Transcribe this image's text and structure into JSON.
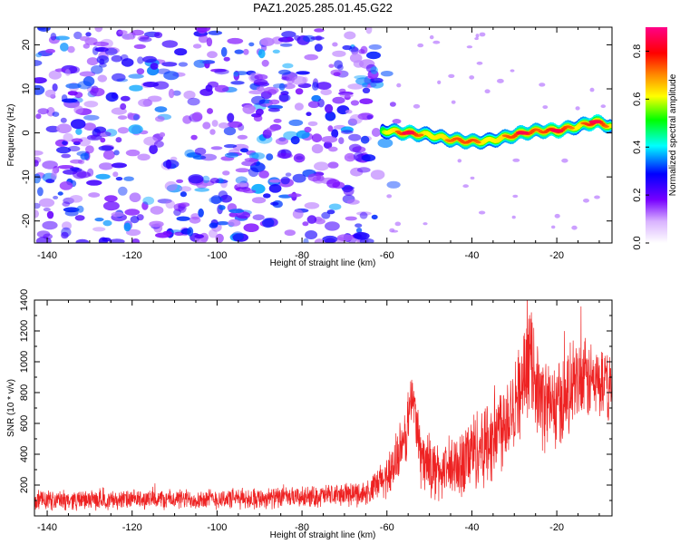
{
  "figure_title": "PAZ1.2025.285.01.45.G22",
  "chart_data": [
    {
      "type": "heatmap",
      "title": "PAZ1.2025.285.01.45.G22",
      "xlabel": "Height of straight line (km)",
      "ylabel": "Frequency (Hz)",
      "xlim": [
        -143,
        -7
      ],
      "ylim": [
        -25,
        24
      ],
      "xticks": [
        -140,
        -120,
        -100,
        -80,
        -60,
        -40,
        -20
      ],
      "yticks": [
        -20,
        -10,
        0,
        10,
        20
      ],
      "xtick_labels": [
        "-140",
        "-120",
        "-100",
        "-80",
        "-60",
        "-40",
        "-20"
      ],
      "ytick_labels": [
        "-20",
        "-10",
        "0",
        "10",
        "20"
      ],
      "noise_region": {
        "x_range": [
          -143,
          -62
        ],
        "freq_range": [
          -25,
          24
        ],
        "normalized_amplitude": [
          0.05,
          0.3
        ]
      },
      "signal_ridge": {
        "description": "dominant spectral line",
        "points": [
          {
            "x": -61,
            "freq": 0.5,
            "amp": 0.5
          },
          {
            "x": -55,
            "freq": 0.0,
            "amp": 0.85
          },
          {
            "x": -50,
            "freq": -0.5,
            "amp": 0.6
          },
          {
            "x": -45,
            "freq": -1.5,
            "amp": 0.7
          },
          {
            "x": -40,
            "freq": -2.0,
            "amp": 0.75
          },
          {
            "x": -36,
            "freq": -1.8,
            "amp": 0.6
          },
          {
            "x": -32,
            "freq": -1.0,
            "amp": 0.7
          },
          {
            "x": -28,
            "freq": 0.0,
            "amp": 0.8
          },
          {
            "x": -24,
            "freq": 0.5,
            "amp": 0.7
          },
          {
            "x": -20,
            "freq": 0.5,
            "amp": 0.9
          },
          {
            "x": -15,
            "freq": 1.5,
            "amp": 0.6
          },
          {
            "x": -11,
            "freq": 2.5,
            "amp": 0.9
          },
          {
            "x": -7,
            "freq": 1.5,
            "amp": 0.6
          }
        ]
      },
      "colorbar": {
        "label": "Normalized spectral amplitude",
        "range": [
          0.0,
          0.9
        ],
        "ticks": [
          0.0,
          0.2,
          0.4,
          0.6,
          0.8
        ],
        "tick_labels": [
          "0.0",
          "0.2",
          "0.4",
          "0.6",
          "0.8"
        ],
        "colormap": [
          "#ffffff",
          "#7700ff",
          "#0000ff",
          "#00ffff",
          "#00ff00",
          "#ffff00",
          "#ff8800",
          "#ff0000",
          "#ff0088"
        ]
      }
    },
    {
      "type": "line",
      "title": "",
      "xlabel": "Height of straight line (km)",
      "ylabel": "SNR (10 * v/v)",
      "xlim": [
        -143,
        -7
      ],
      "ylim": [
        0,
        1400
      ],
      "xticks": [
        -140,
        -120,
        -100,
        -80,
        -60,
        -40,
        -20
      ],
      "yticks": [
        200,
        400,
        600,
        800,
        1000,
        1200,
        1400
      ],
      "xtick_labels": [
        "-140",
        "-120",
        "-100",
        "-80",
        "-60",
        "-40",
        "-20"
      ],
      "ytick_labels": [
        "200",
        "400",
        "600",
        "800",
        "1000",
        "1200",
        "1400"
      ],
      "series": [
        {
          "name": "SNR",
          "color": "#ee2222",
          "envelope": {
            "x": [
              -143,
              -120,
              -100,
              -80,
              -64,
              -60,
              -56,
              -54,
              -52,
              -48,
              -44,
              -40,
              -36,
              -32,
              -28,
              -26,
              -24,
              -20,
              -16,
              -12,
              -7
            ],
            "mean": [
              100,
              105,
              110,
              120,
              150,
              260,
              450,
              800,
              380,
              280,
              300,
              420,
              480,
              650,
              850,
              1050,
              750,
              700,
              850,
              880,
              820
            ],
            "spread": [
              60,
              60,
              65,
              65,
              80,
              140,
              200,
              180,
              200,
              180,
              220,
              250,
              280,
              300,
              300,
              300,
              300,
              280,
              280,
              250,
              200
            ]
          }
        }
      ]
    }
  ]
}
